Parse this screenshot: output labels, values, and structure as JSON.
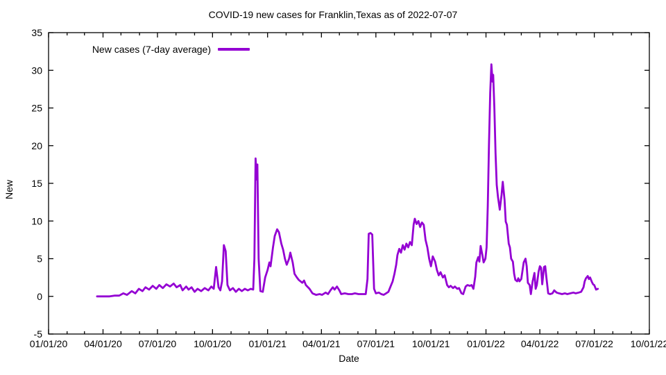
{
  "chart_data": {
    "type": "line",
    "title": "COVID-19 new cases for Franklin,Texas as of 2022-07-07",
    "xlabel": "Date",
    "ylabel": "New",
    "legend": {
      "label": "New cases (7-day average)",
      "position": "top-left-inside"
    },
    "line_color": "#9400d3",
    "background_color": "#ffffff",
    "axis_color": "#000000",
    "grid": false,
    "ylim": [
      -5,
      35
    ],
    "x_range": [
      "2020-01-01",
      "2022-10-01"
    ],
    "y_ticks": [
      -5,
      0,
      5,
      10,
      15,
      20,
      25,
      30,
      35
    ],
    "x_ticks": [
      {
        "date": "2020-01-01",
        "label": "01/01/20"
      },
      {
        "date": "2020-04-01",
        "label": "04/01/20"
      },
      {
        "date": "2020-07-01",
        "label": "07/01/20"
      },
      {
        "date": "2020-10-01",
        "label": "10/01/20"
      },
      {
        "date": "2021-01-01",
        "label": "01/01/21"
      },
      {
        "date": "2021-04-01",
        "label": "04/01/21"
      },
      {
        "date": "2021-07-01",
        "label": "07/01/21"
      },
      {
        "date": "2021-10-01",
        "label": "10/01/21"
      },
      {
        "date": "2022-01-01",
        "label": "01/01/22"
      },
      {
        "date": "2022-04-01",
        "label": "04/01/22"
      },
      {
        "date": "2022-07-01",
        "label": "07/01/22"
      },
      {
        "date": "2022-10-01",
        "label": "10/01/22"
      }
    ],
    "series": [
      {
        "name": "New cases (7-day average)",
        "points": [
          [
            "2020-03-22",
            0.0
          ],
          [
            "2020-03-28",
            0.0
          ],
          [
            "2020-04-04",
            0.0
          ],
          [
            "2020-04-12",
            0.0
          ],
          [
            "2020-04-20",
            0.1
          ],
          [
            "2020-04-28",
            0.1
          ],
          [
            "2020-05-05",
            0.4
          ],
          [
            "2020-05-11",
            0.2
          ],
          [
            "2020-05-19",
            0.7
          ],
          [
            "2020-05-25",
            0.4
          ],
          [
            "2020-05-31",
            1.0
          ],
          [
            "2020-06-06",
            0.7
          ],
          [
            "2020-06-11",
            1.2
          ],
          [
            "2020-06-17",
            0.9
          ],
          [
            "2020-06-23",
            1.4
          ],
          [
            "2020-06-29",
            1.0
          ],
          [
            "2020-07-04",
            1.5
          ],
          [
            "2020-07-10",
            1.1
          ],
          [
            "2020-07-16",
            1.6
          ],
          [
            "2020-07-22",
            1.3
          ],
          [
            "2020-07-28",
            1.7
          ],
          [
            "2020-08-02",
            1.2
          ],
          [
            "2020-08-08",
            1.5
          ],
          [
            "2020-08-12",
            0.8
          ],
          [
            "2020-08-18",
            1.3
          ],
          [
            "2020-08-22",
            0.9
          ],
          [
            "2020-08-27",
            1.2
          ],
          [
            "2020-09-01",
            0.6
          ],
          [
            "2020-09-06",
            1.0
          ],
          [
            "2020-09-12",
            0.7
          ],
          [
            "2020-09-18",
            1.1
          ],
          [
            "2020-09-24",
            0.8
          ],
          [
            "2020-09-29",
            1.3
          ],
          [
            "2020-10-03",
            1.0
          ],
          [
            "2020-10-07",
            3.9
          ],
          [
            "2020-10-11",
            1.2
          ],
          [
            "2020-10-14",
            0.8
          ],
          [
            "2020-10-17",
            2.0
          ],
          [
            "2020-10-20",
            6.8
          ],
          [
            "2020-10-23",
            6.0
          ],
          [
            "2020-10-26",
            1.5
          ],
          [
            "2020-10-30",
            0.8
          ],
          [
            "2020-11-04",
            1.1
          ],
          [
            "2020-11-09",
            0.6
          ],
          [
            "2020-11-14",
            1.0
          ],
          [
            "2020-11-19",
            0.7
          ],
          [
            "2020-11-24",
            1.0
          ],
          [
            "2020-11-29",
            0.8
          ],
          [
            "2020-12-04",
            1.0
          ],
          [
            "2020-12-08",
            0.9
          ],
          [
            "2020-12-10",
            5.0
          ],
          [
            "2020-12-12",
            18.3
          ],
          [
            "2020-12-14",
            15.5
          ],
          [
            "2020-12-15",
            17.5
          ],
          [
            "2020-12-17",
            5.0
          ],
          [
            "2020-12-20",
            0.7
          ],
          [
            "2020-12-24",
            0.6
          ],
          [
            "2020-12-28",
            2.5
          ],
          [
            "2021-01-01",
            3.5
          ],
          [
            "2021-01-04",
            4.5
          ],
          [
            "2021-01-06",
            4.0
          ],
          [
            "2021-01-10",
            6.5
          ],
          [
            "2021-01-13",
            8.0
          ],
          [
            "2021-01-17",
            8.9
          ],
          [
            "2021-01-20",
            8.5
          ],
          [
            "2021-01-24",
            7.0
          ],
          [
            "2021-01-27",
            6.2
          ],
          [
            "2021-01-30",
            5.0
          ],
          [
            "2021-02-02",
            4.2
          ],
          [
            "2021-02-06",
            5.0
          ],
          [
            "2021-02-08",
            5.8
          ],
          [
            "2021-02-12",
            4.5
          ],
          [
            "2021-02-15",
            3.0
          ],
          [
            "2021-02-19",
            2.5
          ],
          [
            "2021-02-22",
            2.2
          ],
          [
            "2021-02-28",
            1.8
          ],
          [
            "2021-03-03",
            2.1
          ],
          [
            "2021-03-06",
            1.5
          ],
          [
            "2021-03-12",
            1.0
          ],
          [
            "2021-03-17",
            0.4
          ],
          [
            "2021-03-23",
            0.2
          ],
          [
            "2021-03-29",
            0.3
          ],
          [
            "2021-04-02",
            0.2
          ],
          [
            "2021-04-08",
            0.5
          ],
          [
            "2021-04-12",
            0.3
          ],
          [
            "2021-04-16",
            0.8
          ],
          [
            "2021-04-20",
            1.2
          ],
          [
            "2021-04-23",
            0.9
          ],
          [
            "2021-04-27",
            1.3
          ],
          [
            "2021-05-01",
            0.8
          ],
          [
            "2021-05-04",
            0.3
          ],
          [
            "2021-05-10",
            0.4
          ],
          [
            "2021-05-16",
            0.3
          ],
          [
            "2021-05-22",
            0.3
          ],
          [
            "2021-05-27",
            0.4
          ],
          [
            "2021-06-02",
            0.3
          ],
          [
            "2021-06-08",
            0.3
          ],
          [
            "2021-06-14",
            0.3
          ],
          [
            "2021-06-17",
            2.3
          ],
          [
            "2021-06-19",
            8.3
          ],
          [
            "2021-06-22",
            8.4
          ],
          [
            "2021-06-25",
            8.2
          ],
          [
            "2021-06-28",
            1.0
          ],
          [
            "2021-07-01",
            0.4
          ],
          [
            "2021-07-06",
            0.5
          ],
          [
            "2021-07-10",
            0.3
          ],
          [
            "2021-07-14",
            0.2
          ],
          [
            "2021-07-18",
            0.4
          ],
          [
            "2021-07-22",
            0.6
          ],
          [
            "2021-07-25",
            1.2
          ],
          [
            "2021-07-29",
            2.0
          ],
          [
            "2021-08-01",
            3.0
          ],
          [
            "2021-08-04",
            4.2
          ],
          [
            "2021-08-06",
            5.5
          ],
          [
            "2021-08-09",
            6.3
          ],
          [
            "2021-08-12",
            5.8
          ],
          [
            "2021-08-15",
            6.8
          ],
          [
            "2021-08-18",
            6.2
          ],
          [
            "2021-08-21",
            7.0
          ],
          [
            "2021-08-24",
            6.5
          ],
          [
            "2021-08-27",
            7.2
          ],
          [
            "2021-08-30",
            6.8
          ],
          [
            "2021-09-02",
            9.5
          ],
          [
            "2021-09-04",
            10.3
          ],
          [
            "2021-09-07",
            9.6
          ],
          [
            "2021-09-10",
            10.0
          ],
          [
            "2021-09-13",
            9.2
          ],
          [
            "2021-09-16",
            9.8
          ],
          [
            "2021-09-19",
            9.5
          ],
          [
            "2021-09-22",
            7.5
          ],
          [
            "2021-09-25",
            6.5
          ],
          [
            "2021-09-28",
            5.0
          ],
          [
            "2021-10-01",
            4.0
          ],
          [
            "2021-10-04",
            5.3
          ],
          [
            "2021-10-08",
            4.6
          ],
          [
            "2021-10-11",
            3.5
          ],
          [
            "2021-10-14",
            2.8
          ],
          [
            "2021-10-17",
            3.2
          ],
          [
            "2021-10-21",
            2.5
          ],
          [
            "2021-10-24",
            2.8
          ],
          [
            "2021-10-28",
            1.5
          ],
          [
            "2021-10-31",
            1.2
          ],
          [
            "2021-11-03",
            1.4
          ],
          [
            "2021-11-07",
            1.1
          ],
          [
            "2021-11-10",
            1.3
          ],
          [
            "2021-11-14",
            1.0
          ],
          [
            "2021-11-17",
            1.1
          ],
          [
            "2021-11-21",
            0.4
          ],
          [
            "2021-11-24",
            0.3
          ],
          [
            "2021-11-28",
            1.3
          ],
          [
            "2021-12-01",
            1.5
          ],
          [
            "2021-12-05",
            1.4
          ],
          [
            "2021-12-08",
            1.5
          ],
          [
            "2021-12-11",
            1.0
          ],
          [
            "2021-12-14",
            2.6
          ],
          [
            "2021-12-16",
            4.5
          ],
          [
            "2021-12-19",
            5.2
          ],
          [
            "2021-12-21",
            4.6
          ],
          [
            "2021-12-23",
            6.7
          ],
          [
            "2021-12-26",
            5.5
          ],
          [
            "2021-12-28",
            4.5
          ],
          [
            "2021-12-31",
            5.0
          ],
          [
            "2022-01-02",
            6.5
          ],
          [
            "2022-01-04",
            12.0
          ],
          [
            "2022-01-06",
            20.0
          ],
          [
            "2022-01-08",
            27.0
          ],
          [
            "2022-01-10",
            30.8
          ],
          [
            "2022-01-12",
            28.5
          ],
          [
            "2022-01-13",
            29.4
          ],
          [
            "2022-01-15",
            25.0
          ],
          [
            "2022-01-17",
            19.0
          ],
          [
            "2022-01-19",
            14.8
          ],
          [
            "2022-01-21",
            13.2
          ],
          [
            "2022-01-24",
            11.5
          ],
          [
            "2022-01-27",
            13.5
          ],
          [
            "2022-01-29",
            15.2
          ],
          [
            "2022-02-01",
            12.8
          ],
          [
            "2022-02-03",
            9.9
          ],
          [
            "2022-02-05",
            9.5
          ],
          [
            "2022-02-08",
            7.0
          ],
          [
            "2022-02-10",
            6.5
          ],
          [
            "2022-02-12",
            5.0
          ],
          [
            "2022-02-15",
            4.6
          ],
          [
            "2022-02-17",
            3.0
          ],
          [
            "2022-02-19",
            2.2
          ],
          [
            "2022-02-22",
            2.0
          ],
          [
            "2022-02-24",
            2.4
          ],
          [
            "2022-02-26",
            2.0
          ],
          [
            "2022-03-01",
            2.3
          ],
          [
            "2022-03-05",
            4.5
          ],
          [
            "2022-03-08",
            5.0
          ],
          [
            "2022-03-10",
            4.0
          ],
          [
            "2022-03-12",
            1.8
          ],
          [
            "2022-03-15",
            1.5
          ],
          [
            "2022-03-17",
            0.3
          ],
          [
            "2022-03-20",
            2.0
          ],
          [
            "2022-03-23",
            3.1
          ],
          [
            "2022-03-25",
            1.0
          ],
          [
            "2022-03-27",
            1.5
          ],
          [
            "2022-03-30",
            3.3
          ],
          [
            "2022-04-01",
            4.0
          ],
          [
            "2022-04-03",
            3.8
          ],
          [
            "2022-04-05",
            1.6
          ],
          [
            "2022-04-08",
            3.9
          ],
          [
            "2022-04-10",
            4.0
          ],
          [
            "2022-04-12",
            2.5
          ],
          [
            "2022-04-15",
            0.4
          ],
          [
            "2022-04-18",
            0.3
          ],
          [
            "2022-04-22",
            0.4
          ],
          [
            "2022-04-25",
            0.8
          ],
          [
            "2022-04-29",
            0.5
          ],
          [
            "2022-05-03",
            0.4
          ],
          [
            "2022-05-08",
            0.3
          ],
          [
            "2022-05-13",
            0.4
          ],
          [
            "2022-05-17",
            0.3
          ],
          [
            "2022-05-22",
            0.4
          ],
          [
            "2022-05-27",
            0.5
          ],
          [
            "2022-05-31",
            0.4
          ],
          [
            "2022-06-05",
            0.5
          ],
          [
            "2022-06-09",
            0.6
          ],
          [
            "2022-06-13",
            1.2
          ],
          [
            "2022-06-15",
            2.0
          ],
          [
            "2022-06-17",
            2.4
          ],
          [
            "2022-06-20",
            2.7
          ],
          [
            "2022-06-22",
            2.3
          ],
          [
            "2022-06-24",
            2.5
          ],
          [
            "2022-06-27",
            1.9
          ],
          [
            "2022-06-29",
            1.6
          ],
          [
            "2022-07-01",
            1.5
          ],
          [
            "2022-07-04",
            0.9
          ],
          [
            "2022-07-07",
            1.0
          ]
        ]
      }
    ]
  }
}
